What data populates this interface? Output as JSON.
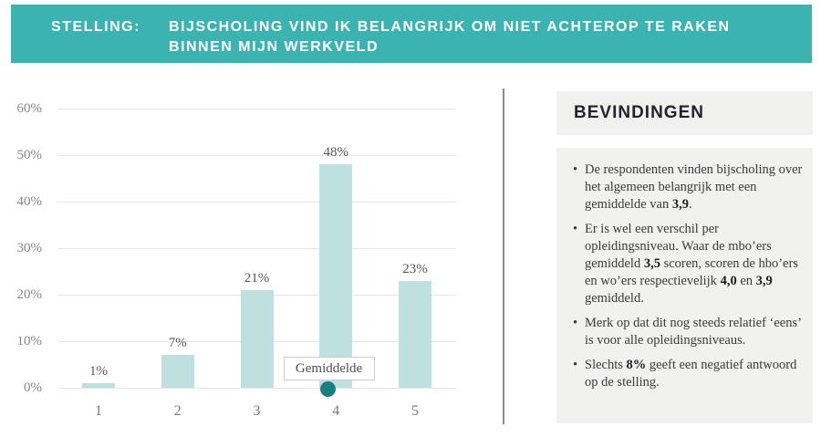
{
  "banner": {
    "label": "STELLING:",
    "statement_lines": [
      "BIJSCHOLING VIND IK BELANGRIJK OM NIET ACHTEROP TE RAKEN",
      "BINNEN MIJN WERKVELD"
    ]
  },
  "chart_data": {
    "type": "bar",
    "categories": [
      "1",
      "2",
      "3",
      "4",
      "5"
    ],
    "values": [
      1,
      7,
      21,
      48,
      23
    ],
    "value_labels": [
      "1%",
      "7%",
      "21%",
      "48%",
      "23%"
    ],
    "yticks": [
      {
        "value": 0,
        "label": "0%"
      },
      {
        "value": 10,
        "label": "10%"
      },
      {
        "value": 20,
        "label": "20%"
      },
      {
        "value": 30,
        "label": "30%"
      },
      {
        "value": 40,
        "label": "40%"
      },
      {
        "value": 50,
        "label": "50%"
      },
      {
        "value": 60,
        "label": "60%"
      }
    ],
    "ylim": [
      0,
      60
    ],
    "grid": "horizontal",
    "legend": "none",
    "mean_marker": {
      "label": "Gemiddelde",
      "value": 3.9
    }
  },
  "findings": {
    "title": "BEVINDINGEN",
    "bullets": [
      {
        "segments": [
          {
            "text": "De respondenten vinden bijscholing over het algemeen belangrijk met een gemiddelde van "
          },
          {
            "text": "3,9",
            "bold": true
          },
          {
            "text": "."
          }
        ]
      },
      {
        "segments": [
          {
            "text": "Er is wel een verschil per opleidingsniveau. Waar de mbo’ers gemiddeld "
          },
          {
            "text": "3,5",
            "bold": true
          },
          {
            "text": " scoren, scoren de hbo’ers en wo’ers respectievelijk "
          },
          {
            "text": "4,0",
            "bold": true
          },
          {
            "text": " en "
          },
          {
            "text": "3,9",
            "bold": true
          },
          {
            "text": " gemiddeld."
          }
        ]
      },
      {
        "segments": [
          {
            "text": "Merk op dat dit nog steeds relatief ‘eens’ is voor alle opleidingsniveaus."
          }
        ]
      },
      {
        "segments": [
          {
            "text": "Slechts "
          },
          {
            "text": "8%",
            "bold": true
          },
          {
            "text": " geeft een negatief antwoord op de stelling."
          }
        ]
      }
    ]
  },
  "colors": {
    "banner_teal": "#3bb4b1",
    "bar_fill": "#bee0df",
    "mean_dot": "#1a7f81",
    "panel_bg": "#f1f1ef",
    "gridline": "#e5e5e5",
    "axis_text": "#84868c",
    "divider": "#8c8c8c"
  }
}
